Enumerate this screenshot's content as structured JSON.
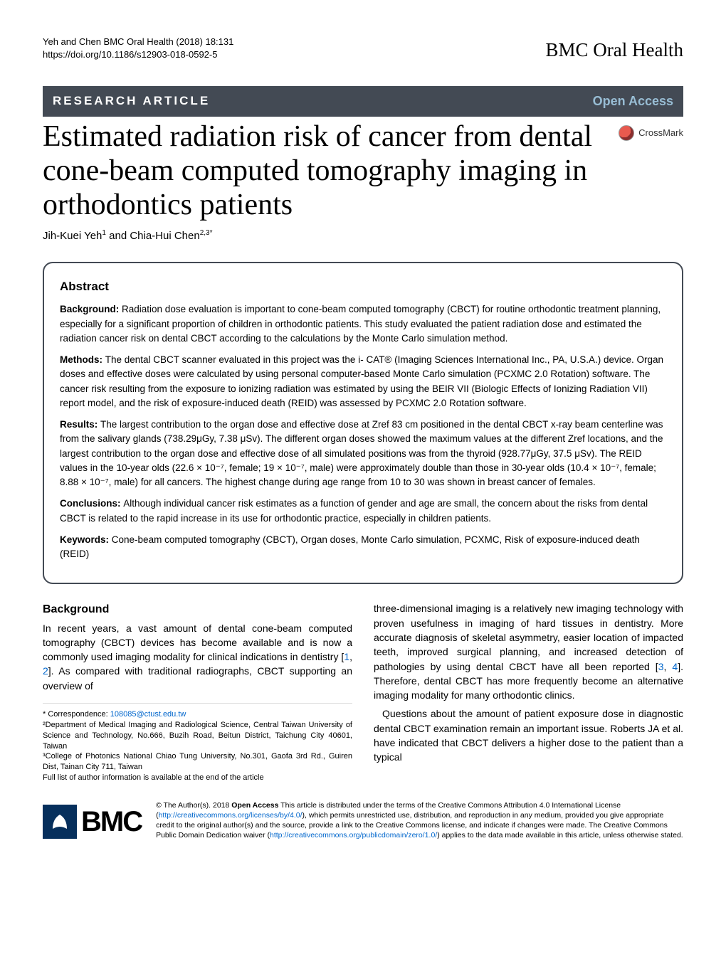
{
  "header": {
    "citation": "Yeh and Chen BMC Oral Health (2018) 18:131",
    "doi": "https://doi.org/10.1186/s12903-018-0592-5",
    "journal": "BMC Oral Health"
  },
  "article_type": "RESEARCH ARTICLE",
  "open_access": "Open Access",
  "crossmark": "CrossMark",
  "title": "Estimated radiation risk of cancer from dental cone-beam computed tomography imaging in orthodontics patients",
  "authors_html": "Jih-Kuei Yeh<span class='sup'>1</span> and Chia-Hui Chen<span class='sup'>2,3*</span>",
  "abstract": {
    "heading": "Abstract",
    "background": "Radiation dose evaluation is important to cone-beam computed tomography (CBCT) for routine orthodontic treatment planning, especially for a significant proportion of children in orthodontic patients. This study evaluated the patient radiation dose and estimated the radiation cancer risk on dental CBCT according to the calculations by the Monte Carlo simulation method.",
    "methods": "The dental CBCT scanner evaluated in this project was the i- CAT® (Imaging Sciences International Inc., PA, U.S.A.) device. Organ doses and effective doses were calculated by using personal computer-based Monte Carlo simulation (PCXMC 2.0 Rotation) software. The cancer risk resulting from the exposure to ionizing radiation was estimated by using the BEIR VII (Biologic Effects of Ionizing Radiation VII) report model, and the risk of exposure-induced death (REID) was assessed by PCXMC 2.0 Rotation software.",
    "results": "The largest contribution to the organ dose and effective dose at Zref 83 cm positioned in the dental CBCT x-ray beam centerline was from the salivary glands (738.29μGy, 7.38 μSv). The different organ doses showed the maximum values at the different Zref locations, and the largest contribution to the organ dose and effective dose of all simulated positions was from the thyroid (928.77μGy, 37.5 μSv). The REID values in the 10-year olds (22.6 × 10⁻⁷, female; 19 × 10⁻⁷, male) were approximately double than those in 30-year olds (10.4 × 10⁻⁷, female; 8.88 × 10⁻⁷, male) for all cancers. The highest change during age range from 10 to 30 was shown in breast cancer of females.",
    "conclusions": "Although individual cancer risk estimates as a function of gender and age are small, the concern about the risks from dental CBCT is related to the rapid increase in its use for orthodontic practice, especially in children patients.",
    "keywords": "Cone-beam computed tomography (CBCT), Organ doses, Monte Carlo simulation, PCXMC, Risk of exposure-induced death (REID)"
  },
  "body": {
    "section_heading": "Background",
    "left_html": "In recent years, a vast amount of dental cone-beam computed tomography (CBCT) devices has become available and is now a commonly used imaging modality for clinical indications in dentistry [<span class='cite'>1</span>, <span class='cite'>2</span>]. As compared with traditional radiographs, CBCT supporting an overview of",
    "right_html": "three-dimensional imaging is a relatively new imaging technology with proven usefulness in imaging of hard tissues in dentistry. More accurate diagnosis of skeletal asymmetry, easier location of impacted teeth, improved surgical planning, and increased detection of pathologies by using dental CBCT have all been reported [<span class='cite'>3</span>, <span class='cite'>4</span>]. Therefore, dental CBCT has more frequently become an alternative imaging modality for many orthodontic clinics.",
    "right2": "Questions about the amount of patient exposure dose in diagnostic dental CBCT examination remain an important issue. Roberts JA et al. have indicated that CBCT delivers a higher dose to the patient than a typical"
  },
  "footer": {
    "correspondence_label": "* Correspondence: ",
    "correspondence_email": "108085@ctust.edu.tw",
    "aff2": "²Department of Medical Imaging and Radiological Science, Central Taiwan University of Science and Technology, No.666, Buzih Road, Beitun District, Taichung City 40601, Taiwan",
    "aff3": "³College of Photonics National Chiao Tung University, No.301, Gaofa 3rd Rd., Guiren Dist, Tainan City 711, Taiwan",
    "full_list": "Full list of author information is available at the end of the article"
  },
  "license": {
    "bmc": "BMC",
    "text_html": "© The Author(s). 2018 <b>Open Access</b> This article is distributed under the terms of the Creative Commons Attribution 4.0 International License (<span class='lic-link'>http://creativecommons.org/licenses/by/4.0/</span>), which permits unrestricted use, distribution, and reproduction in any medium, provided you give appropriate credit to the original author(s) and the source, provide a link to the Creative Commons license, and indicate if changes were made. The Creative Commons Public Domain Dedication waiver (<span class='lic-link'>http://creativecommons.org/publicdomain/zero/1.0/</span>) applies to the data made available in this article, unless otherwise stated."
  },
  "colors": {
    "header_bg": "#434a54",
    "open_access_color": "#98bdd4",
    "link_color": "#0066cc",
    "bmc_blue": "#062f5c"
  }
}
